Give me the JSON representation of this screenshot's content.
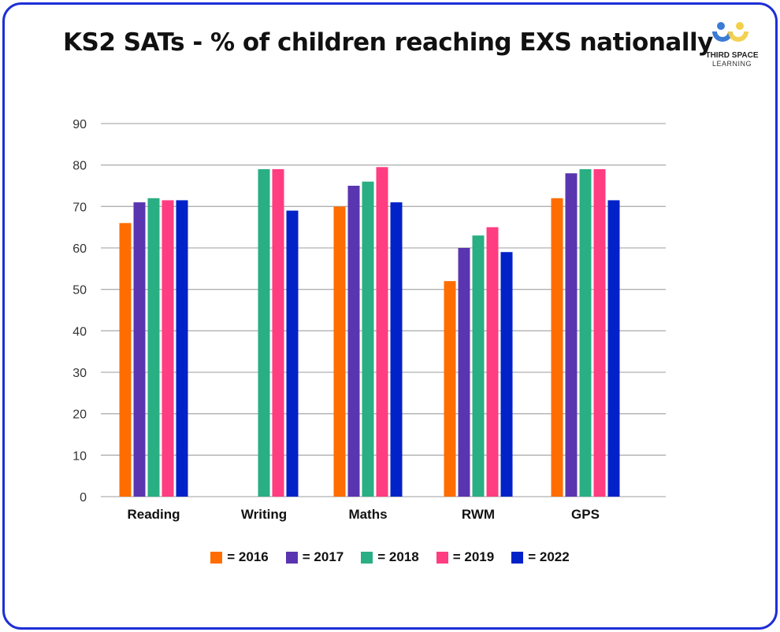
{
  "title": "KS2 SATs - % of children reaching EXS nationally",
  "logo": {
    "line1": "THIRD SPACE",
    "line2": "LEARNING"
  },
  "chart_data": {
    "type": "bar",
    "title": "KS2 SATs - % of children reaching EXS nationally",
    "categories": [
      "Reading",
      "Writing",
      "Maths",
      "RWM",
      "GPS"
    ],
    "series": [
      {
        "name": "= 2016",
        "color": "#ff6d00",
        "values": [
          66,
          null,
          70,
          52,
          72
        ]
      },
      {
        "name": "= 2017",
        "color": "#5a35b0",
        "values": [
          71,
          null,
          75,
          60,
          78
        ]
      },
      {
        "name": "= 2018",
        "color": "#2aae84",
        "values": [
          72,
          79,
          76,
          63,
          79
        ]
      },
      {
        "name": "= 2019",
        "color": "#ff3d80",
        "values": [
          71.5,
          79,
          79.5,
          65,
          79
        ]
      },
      {
        "name": "= 2022",
        "color": "#0022c8",
        "values": [
          71.5,
          69,
          71,
          59,
          71.5
        ]
      }
    ],
    "yticks": [
      "0",
      "10",
      "20",
      "30",
      "40",
      "50",
      "60",
      "70",
      "80",
      "90"
    ],
    "ylim": [
      0,
      90
    ],
    "grid": true,
    "legend": "bottom",
    "xlabel": "",
    "ylabel": ""
  }
}
